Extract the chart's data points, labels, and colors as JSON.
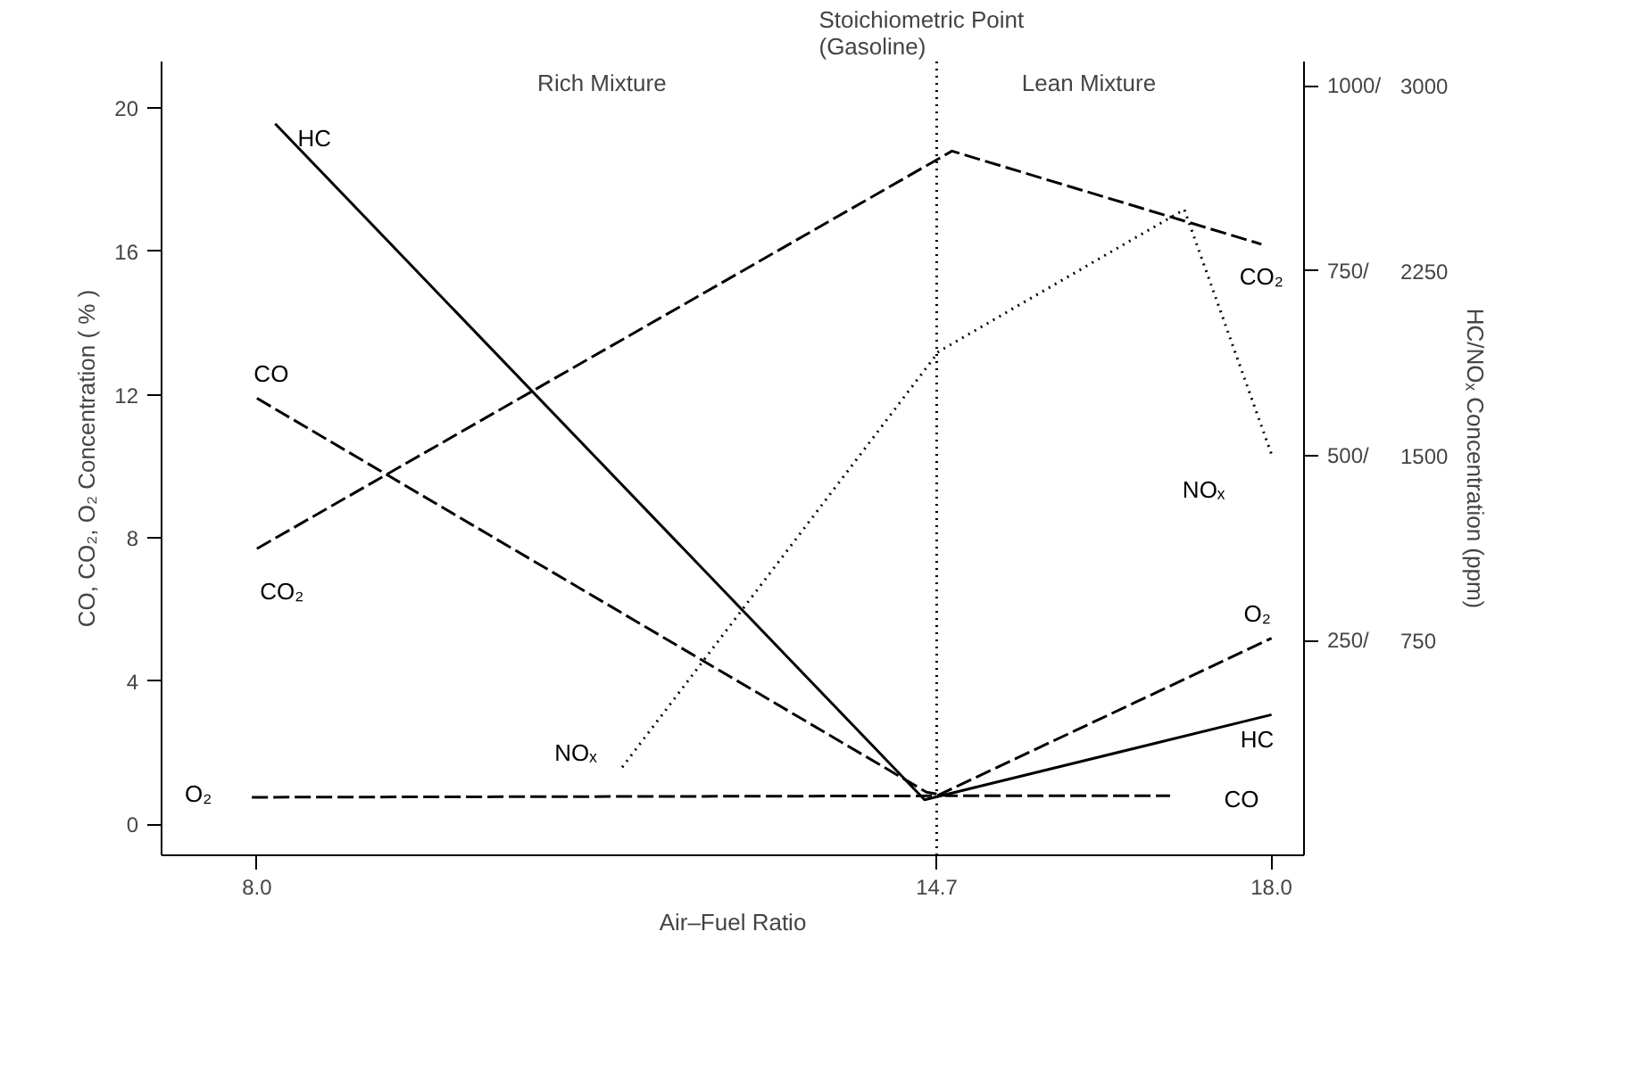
{
  "chart_data": {
    "type": "line",
    "xlabel": "Air–Fuel Ratio",
    "ylabel": "CO, CO₂, O₂ Concentration ( % )",
    "y2label": "HC/NOₓ Concentration (ppm)",
    "xlim": [
      7.06,
      18.32
    ],
    "ylim": [
      -0.86,
      21.3
    ],
    "y2lim": [
      -40,
      1033
    ],
    "y3lim": [
      -120,
      3099
    ],
    "xticks": [
      {
        "value": 8,
        "label": "8.0"
      },
      14.7,
      {
        "value": 18,
        "label": "18.0"
      }
    ],
    "yticks": [
      0,
      4,
      8,
      12,
      16,
      20
    ],
    "y2ticks": [
      {
        "value": 250,
        "label": "250/"
      },
      {
        "value": 500,
        "label": "500/"
      },
      {
        "value": 750,
        "label": "750/"
      },
      {
        "value": 1000,
        "label": "1000/"
      }
    ],
    "y3ticks": [
      750,
      1500,
      2250,
      3000
    ],
    "grid": false,
    "marker": "none",
    "series": [
      {
        "name": "HC",
        "color": "#000000",
        "axis": "y2",
        "line_style": "solid",
        "x": [
          8.18,
          14.58,
          18.0
        ],
        "values": [
          949,
          35,
          150
        ]
      },
      {
        "name": "CO",
        "color": "#000000",
        "line_style": "dashed",
        "x": [
          8.0,
          14.6,
          14.8,
          17.0
        ],
        "values": [
          11.9,
          0.9,
          0.8,
          0.8
        ]
      },
      {
        "name": "CO₂",
        "color": "#000000",
        "line_style": "dashed",
        "x": [
          8.0,
          14.85,
          17.9
        ],
        "values": [
          7.7,
          18.8,
          16.2
        ]
      },
      {
        "name": "NOₓ",
        "color": "#000000",
        "axis": "y3",
        "line_style": "dotted",
        "x": [
          11.6,
          14.72,
          17.14,
          18.0
        ],
        "values": [
          237,
          1923,
          2499,
          1506
        ]
      },
      {
        "name": "O₂",
        "color": "#000000",
        "line_style": "dashed",
        "x": [
          7.95,
          14.7,
          18.0
        ],
        "values": [
          0.76,
          0.8,
          5.2
        ]
      }
    ],
    "ref_lines": [
      {
        "axis": "x",
        "value": 14.7,
        "label": "Stoichiometric Point\n(Gasoline)",
        "line_style": "dotted",
        "color": "#000000"
      }
    ],
    "annotations": [
      "Rich Mixture",
      "Lean Mixture"
    ]
  }
}
